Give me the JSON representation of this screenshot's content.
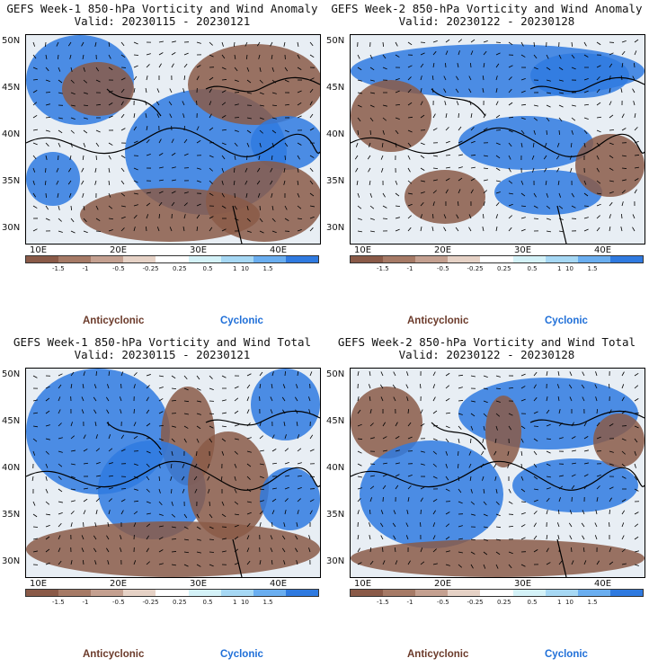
{
  "panels": [
    {
      "title": "GEFS Week-1 850-hPa Vorticity and Wind Anomaly",
      "valid": "Valid: 20230115 - 20230121"
    },
    {
      "title": "GEFS Week-2 850-hPa Vorticity and Wind Anomaly",
      "valid": "Valid: 20230122 - 20230128"
    },
    {
      "title": "GEFS Week-1 850-hPa Vorticity and Wind Total",
      "valid": "Valid: 20230115 - 20230121"
    },
    {
      "title": "GEFS Week-2 850-hPa Vorticity and Wind Total",
      "valid": "Valid: 20230122 - 20230128"
    }
  ],
  "axes": {
    "lat_labels": [
      "50N",
      "45N",
      "40N",
      "35N",
      "30N"
    ],
    "lon_labels": [
      "10E",
      "20E",
      "30E",
      "40E"
    ]
  },
  "colorbar": {
    "labels": [
      "-1.5",
      "-1",
      "-0.5",
      "-0.25",
      "0.25",
      "0.5",
      "1",
      "1.5"
    ],
    "scale_note": "10",
    "colors": [
      "#8a5a48",
      "#a67a66",
      "#c4a090",
      "#e6d2c6",
      "#ffffff",
      "#d4f2f8",
      "#a6d8f4",
      "#6aaef0",
      "#2f7ae0"
    ]
  },
  "legend": {
    "anticyclonic": "Anticyclonic",
    "cyclonic": "Cyclonic",
    "anticyclonic_color": "#6b3a2a",
    "cyclonic_color": "#1f6fd8"
  },
  "palette": {
    "brown": "#8a5a48",
    "brown_light": "#b88a76",
    "blue": "#2f7ae0",
    "blue_light": "#7cc0f2",
    "coast": "#000000"
  }
}
